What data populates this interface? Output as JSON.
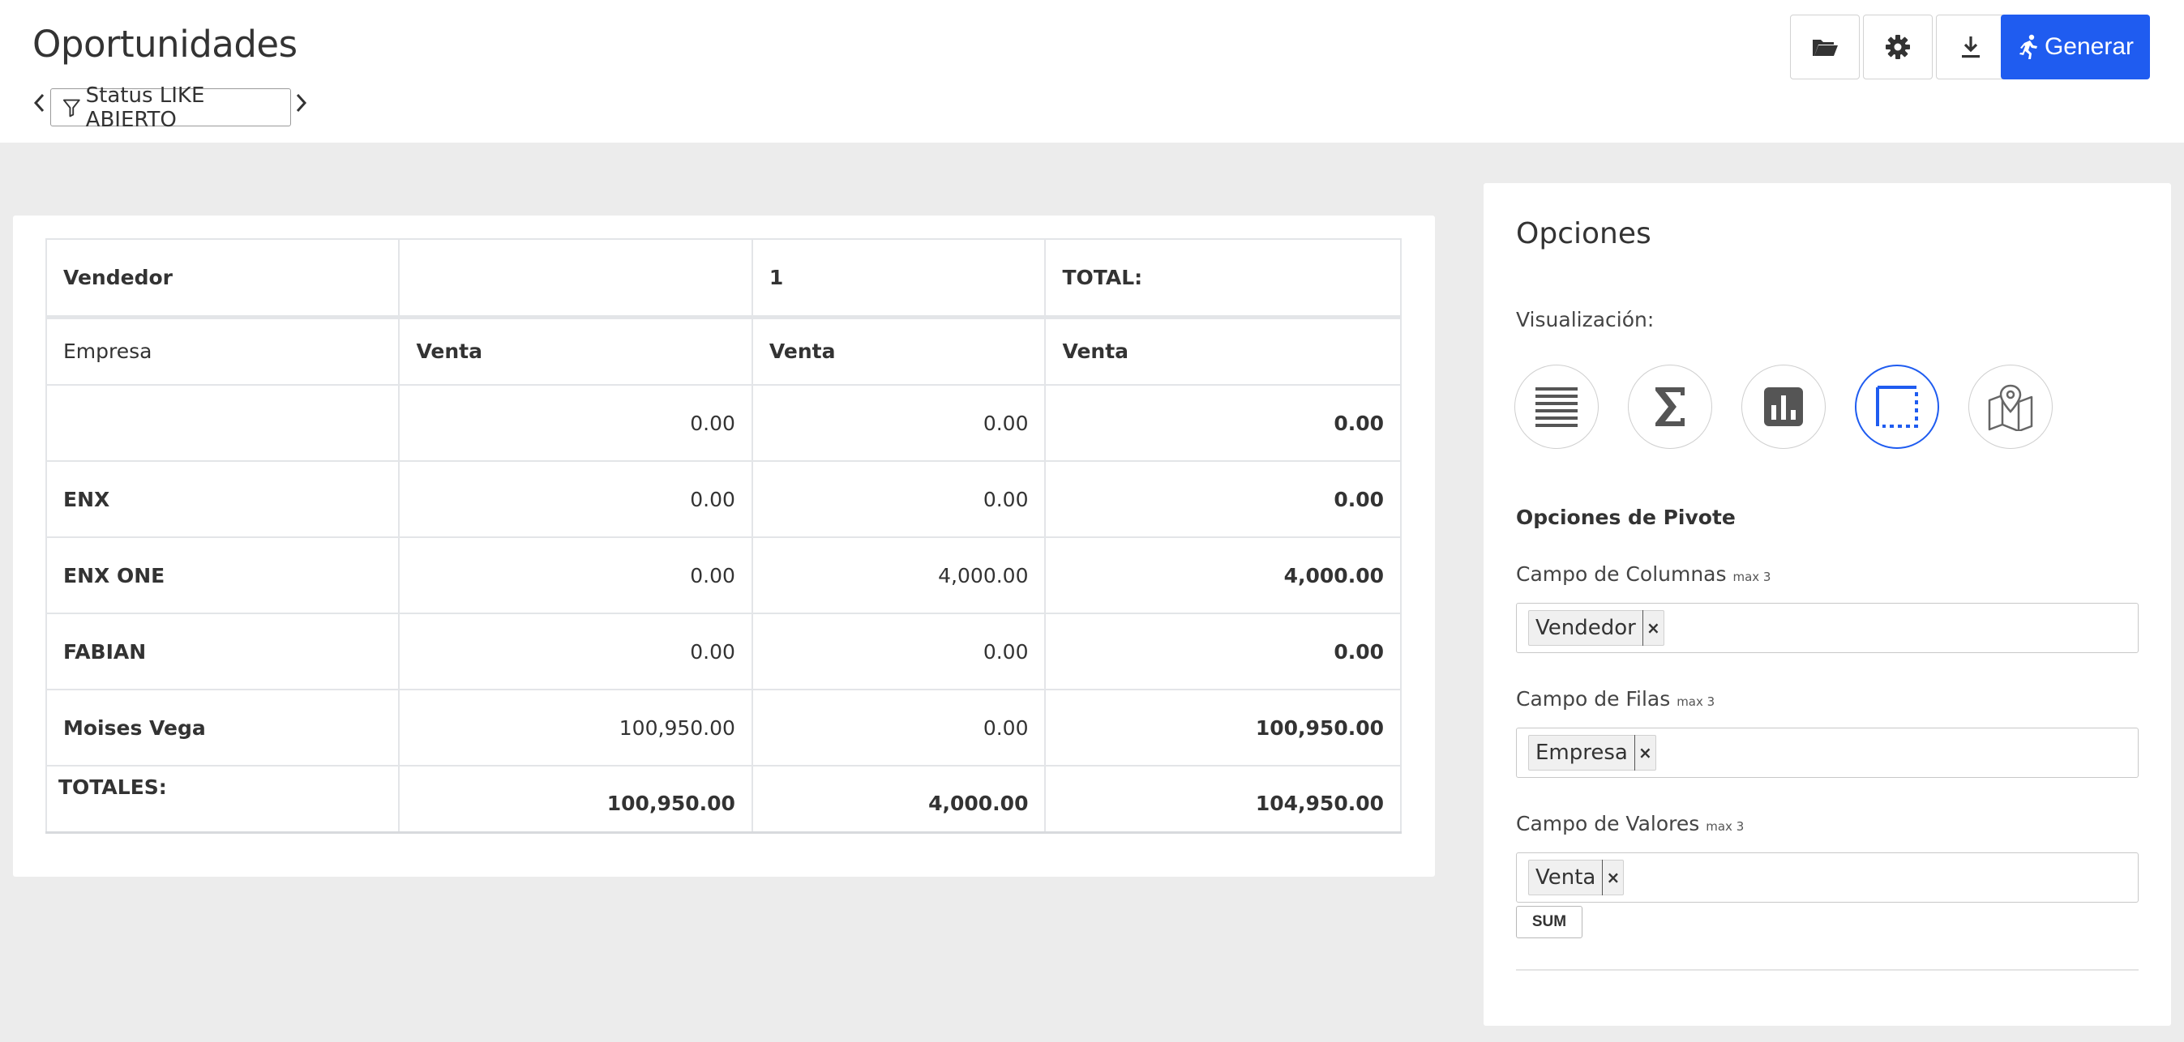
{
  "header": {
    "title": "Oportunidades",
    "filter_label": "Status LIKE ABIERTO",
    "generate_label": "Generar"
  },
  "pivot": {
    "col_field_header": "Vendedor",
    "col_value_1": "",
    "col_value_2": "1",
    "total_header": "TOTAL:",
    "row_field_header": "Empresa",
    "measure_headers": [
      "Venta",
      "Venta",
      "Venta"
    ],
    "rows": [
      {
        "label": "",
        "values": [
          "0.00",
          "0.00",
          "0.00"
        ]
      },
      {
        "label": "ENX",
        "values": [
          "0.00",
          "0.00",
          "0.00"
        ]
      },
      {
        "label": "ENX ONE",
        "values": [
          "0.00",
          "4,000.00",
          "4,000.00"
        ]
      },
      {
        "label": "FABIAN",
        "values": [
          "0.00",
          "0.00",
          "0.00"
        ]
      },
      {
        "label": "Moises Vega",
        "values": [
          "100,950.00",
          "0.00",
          "100,950.00"
        ]
      }
    ],
    "totals_label": "TOTALES:",
    "totals": [
      "100,950.00",
      "4,000.00",
      "104,950.00"
    ]
  },
  "options": {
    "title": "Opciones",
    "visualization_label": "Visualización:",
    "visualizations": [
      "list",
      "summary",
      "chart",
      "pivot",
      "map"
    ],
    "active_visualization": "pivot",
    "pivot_heading": "Opciones de Pivote",
    "columns_label": "Campo de Columnas",
    "rows_label": "Campo de Filas",
    "values_label": "Campo de Valores",
    "max_hint": "max 3",
    "columns_tag": "Vendedor",
    "rows_tag": "Empresa",
    "values_tag": "Venta",
    "remove_glyph": "×",
    "aggregate": "SUM"
  },
  "colors": {
    "accent": "#1f5cf0",
    "background": "#ececec"
  }
}
